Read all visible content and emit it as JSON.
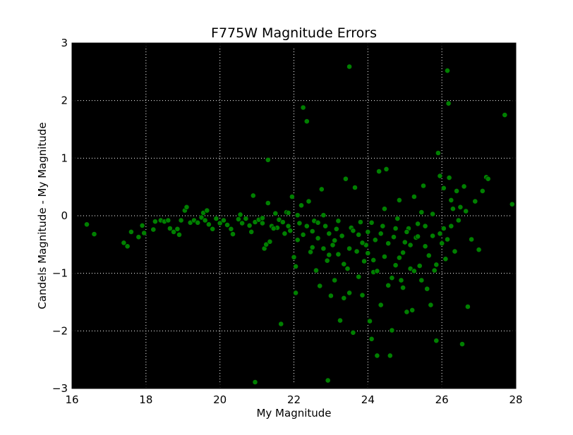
{
  "chart_data": {
    "type": "scatter",
    "title": "F775W Magnitude Errors",
    "xlabel": "My Magnitude",
    "ylabel": "Candels Magnitude - My Magnitude",
    "xlim": [
      16,
      28
    ],
    "ylim": [
      -3,
      3
    ],
    "x_ticks": [
      "16",
      "18",
      "20",
      "22",
      "24",
      "26",
      "28"
    ],
    "y_ticks": [
      "3",
      "2",
      "1",
      "0",
      "−1",
      "−2",
      "−3"
    ],
    "grid": true,
    "grid_style": "dotted",
    "colors": {
      "plot_background": "#000000",
      "marker": "#008000",
      "marker_edge": "#000000",
      "grid": "#ffffff"
    },
    "series": [
      {
        "marker": "circle",
        "points": [
          [
            16.4,
            -0.15
          ],
          [
            16.6,
            -0.32
          ],
          [
            17.4,
            -0.47
          ],
          [
            17.5,
            -0.53
          ],
          [
            17.6,
            -0.28
          ],
          [
            17.8,
            -0.37
          ],
          [
            17.9,
            -0.17
          ],
          [
            17.95,
            -0.3
          ],
          [
            18.2,
            -0.24
          ],
          [
            18.25,
            -0.1
          ],
          [
            18.4,
            -0.08
          ],
          [
            18.5,
            -0.1
          ],
          [
            18.6,
            -0.08
          ],
          [
            18.65,
            -0.22
          ],
          [
            18.75,
            -0.28
          ],
          [
            18.85,
            -0.23
          ],
          [
            18.9,
            -0.33
          ],
          [
            18.95,
            -0.08
          ],
          [
            19.05,
            0.09
          ],
          [
            19.1,
            0.15
          ],
          [
            19.2,
            -0.12
          ],
          [
            19.3,
            -0.08
          ],
          [
            19.4,
            -0.12
          ],
          [
            19.5,
            -0.03
          ],
          [
            19.55,
            0.05
          ],
          [
            19.6,
            -0.08
          ],
          [
            19.65,
            0.09
          ],
          [
            19.7,
            -0.15
          ],
          [
            19.8,
            -0.23
          ],
          [
            19.9,
            -0.05
          ],
          [
            20.0,
            -0.13
          ],
          [
            20.1,
            -0.08
          ],
          [
            20.2,
            -0.16
          ],
          [
            20.3,
            -0.23
          ],
          [
            20.35,
            -0.32
          ],
          [
            20.5,
            -0.06
          ],
          [
            20.55,
            0.02
          ],
          [
            20.6,
            -0.13
          ],
          [
            20.7,
            -0.05
          ],
          [
            20.8,
            -0.17
          ],
          [
            20.85,
            -0.28
          ],
          [
            20.9,
            0.35
          ],
          [
            20.95,
            -0.11
          ],
          [
            21.05,
            -0.07
          ],
          [
            21.15,
            -0.13
          ],
          [
            21.2,
            -0.57
          ],
          [
            21.25,
            -0.5
          ],
          [
            21.3,
            0.97
          ],
          [
            21.3,
            0.22
          ],
          [
            21.35,
            -0.45
          ],
          [
            21.4,
            -0.18
          ],
          [
            21.5,
            0.04
          ],
          [
            21.55,
            -0.21
          ],
          [
            21.6,
            -0.07
          ],
          [
            21.65,
            -1.88
          ],
          [
            21.7,
            -0.11
          ],
          [
            21.75,
            -0.31
          ],
          [
            21.8,
            0.06
          ],
          [
            21.85,
            -0.18
          ],
          [
            21.9,
            -0.26
          ],
          [
            21.95,
            0.33
          ],
          [
            22.0,
            -0.72
          ],
          [
            22.05,
            -0.88
          ],
          [
            22.1,
            -0.42
          ],
          [
            22.15,
            -0.13
          ],
          [
            22.2,
            0.18
          ],
          [
            22.25,
            1.88
          ],
          [
            22.35,
            1.64
          ],
          [
            22.4,
            0.25
          ],
          [
            22.45,
            -0.63
          ],
          [
            22.5,
            -0.27
          ],
          [
            22.55,
            -0.09
          ],
          [
            22.6,
            -0.95
          ],
          [
            22.65,
            -0.39
          ],
          [
            22.7,
            -1.22
          ],
          [
            22.75,
            0.46
          ],
          [
            22.8,
            -0.57
          ],
          [
            22.85,
            -0.18
          ],
          [
            22.9,
            -0.78
          ],
          [
            22.92,
            -2.86
          ],
          [
            22.95,
            -0.31
          ],
          [
            23.0,
            -1.39
          ],
          [
            23.05,
            -0.51
          ],
          [
            23.1,
            -1.12
          ],
          [
            23.15,
            -0.23
          ],
          [
            23.2,
            -0.67
          ],
          [
            23.25,
            -1.82
          ],
          [
            23.3,
            -0.35
          ],
          [
            23.35,
            -1.43
          ],
          [
            23.4,
            0.64
          ],
          [
            23.45,
            -0.92
          ],
          [
            23.5,
            2.59
          ],
          [
            23.5,
            -1.34
          ],
          [
            23.55,
            -0.21
          ],
          [
            23.6,
            -2.03
          ],
          [
            23.65,
            0.49
          ],
          [
            23.7,
            -0.62
          ],
          [
            23.75,
            -0.33
          ],
          [
            23.8,
            -0.11
          ],
          [
            23.85,
            -1.38
          ],
          [
            23.9,
            -0.79
          ],
          [
            23.95,
            -0.51
          ],
          [
            24.0,
            -0.28
          ],
          [
            24.05,
            -1.83
          ],
          [
            24.1,
            -2.14
          ],
          [
            24.15,
            -0.98
          ],
          [
            24.2,
            -0.42
          ],
          [
            24.25,
            -2.43
          ],
          [
            24.3,
            0.77
          ],
          [
            24.35,
            -1.55
          ],
          [
            24.4,
            -0.18
          ],
          [
            24.45,
            -0.71
          ],
          [
            24.5,
            0.81
          ],
          [
            24.55,
            -1.21
          ],
          [
            24.6,
            -2.43
          ],
          [
            24.65,
            -1.99
          ],
          [
            24.7,
            -0.37
          ],
          [
            24.75,
            -0.86
          ],
          [
            24.8,
            -0.05
          ],
          [
            24.85,
            0.27
          ],
          [
            24.9,
            -1.12
          ],
          [
            24.95,
            -0.64
          ],
          [
            25.0,
            -0.46
          ],
          [
            25.05,
            -1.67
          ],
          [
            25.1,
            -0.22
          ],
          [
            25.15,
            -0.92
          ],
          [
            25.2,
            -1.64
          ],
          [
            25.25,
            0.33
          ],
          [
            25.3,
            -0.38
          ],
          [
            25.35,
            -0.14
          ],
          [
            25.4,
            -0.87
          ],
          [
            25.45,
            0.06
          ],
          [
            25.5,
            0.52
          ],
          [
            25.55,
            -0.53
          ],
          [
            25.6,
            -1.27
          ],
          [
            25.7,
            -1.55
          ],
          [
            25.75,
            -0.35
          ],
          [
            25.8,
            -0.95
          ],
          [
            25.85,
            -2.17
          ],
          [
            25.9,
            1.09
          ],
          [
            25.95,
            0.69
          ],
          [
            26.0,
            -0.48
          ],
          [
            26.05,
            -0.22
          ],
          [
            26.1,
            -0.75
          ],
          [
            26.15,
            2.52
          ],
          [
            26.18,
            1.95
          ],
          [
            26.2,
            0.66
          ],
          [
            26.25,
            -0.18
          ],
          [
            26.3,
            0.12
          ],
          [
            26.35,
            -0.62
          ],
          [
            26.4,
            0.43
          ],
          [
            26.45,
            -0.08
          ],
          [
            26.5,
            0.15
          ],
          [
            26.55,
            -2.23
          ],
          [
            26.6,
            0.51
          ],
          [
            26.65,
            0.08
          ],
          [
            26.7,
            -1.58
          ],
          [
            26.8,
            -0.41
          ],
          [
            26.9,
            0.25
          ],
          [
            27.0,
            -0.59
          ],
          [
            27.1,
            0.43
          ],
          [
            27.2,
            0.67
          ],
          [
            27.25,
            0.64
          ],
          [
            27.7,
            1.75
          ],
          [
            27.9,
            0.2
          ],
          [
            20.95,
            -2.89
          ],
          [
            22.05,
            -1.34
          ],
          [
            24.15,
            -0.77
          ],
          [
            21.15,
            -0.04
          ],
          [
            21.45,
            -0.22
          ],
          [
            21.85,
            0.05
          ],
          [
            22.1,
            0.01
          ],
          [
            22.25,
            -0.33
          ],
          [
            22.35,
            -0.18
          ],
          [
            22.5,
            -0.55
          ],
          [
            22.65,
            -0.12
          ],
          [
            22.8,
            0.01
          ],
          [
            22.95,
            -0.68
          ],
          [
            23.1,
            -0.43
          ],
          [
            23.2,
            -0.09
          ],
          [
            23.35,
            -0.84
          ],
          [
            23.5,
            -0.57
          ],
          [
            23.6,
            -0.26
          ],
          [
            23.75,
            -1.06
          ],
          [
            23.85,
            -0.47
          ],
          [
            24.0,
            -0.65
          ],
          [
            24.1,
            -0.12
          ],
          [
            24.25,
            -0.96
          ],
          [
            24.35,
            -0.31
          ],
          [
            24.45,
            0.12
          ],
          [
            24.55,
            -0.48
          ],
          [
            24.65,
            -1.08
          ],
          [
            24.75,
            -0.22
          ],
          [
            24.85,
            -0.73
          ],
          [
            24.95,
            -1.25
          ],
          [
            25.05,
            -0.28
          ],
          [
            25.15,
            -0.51
          ],
          [
            25.25,
            -0.96
          ],
          [
            25.35,
            -0.36
          ],
          [
            25.45,
            -1.12
          ],
          [
            25.55,
            -0.18
          ],
          [
            25.65,
            -0.69
          ],
          [
            25.75,
            0.03
          ],
          [
            25.85,
            -0.85
          ],
          [
            25.95,
            -0.31
          ],
          [
            26.05,
            0.48
          ],
          [
            26.15,
            -0.41
          ],
          [
            26.25,
            0.27
          ]
        ]
      }
    ]
  }
}
